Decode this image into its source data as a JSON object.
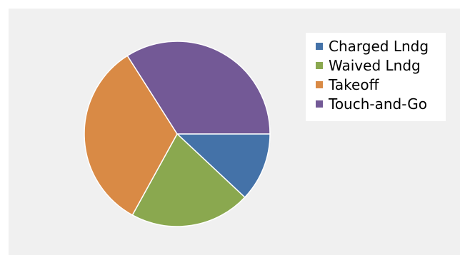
{
  "chart_data": {
    "type": "pie",
    "categories": [
      "Charged Lndg",
      "Waived Lndg",
      "Takeoff",
      "Touch-and-Go"
    ],
    "values": [
      12,
      21,
      33,
      34
    ],
    "colors": [
      "#4472a8",
      "#8aa84f",
      "#d98a45",
      "#735996"
    ],
    "start_angle_deg": 0,
    "direction": "clockwise",
    "legend_position": "top-right",
    "title": ""
  }
}
